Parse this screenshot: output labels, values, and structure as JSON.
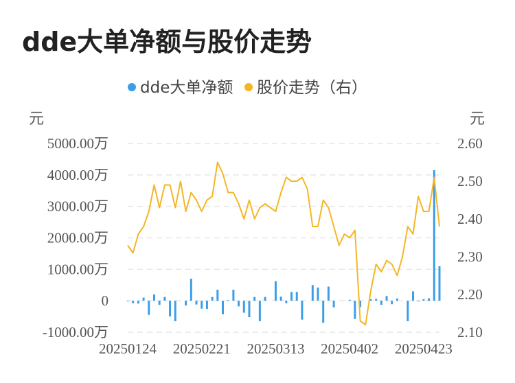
{
  "chart_data": {
    "type": "bar+line",
    "title": "dde大单净额与股价走势",
    "legend": [
      {
        "name": "dde大单净额",
        "color": "#3b9ee8"
      },
      {
        "name": "股价走势（右）",
        "color": "#f5b623"
      }
    ],
    "left_unit": "元",
    "right_unit": "元",
    "left_axis": {
      "min": -1000,
      "max": 5000,
      "ticks": [
        5000,
        4000,
        3000,
        2000,
        1000,
        0,
        -1000
      ],
      "tick_labels": [
        "5000.00万",
        "4000.00万",
        "3000.00万",
        "2000.00万",
        "1000.00万",
        "0",
        "-1000.00万"
      ]
    },
    "right_axis": {
      "min": 2.1,
      "max": 2.6,
      "ticks": [
        2.6,
        2.5,
        2.4,
        2.3,
        2.2,
        2.1
      ],
      "tick_labels": [
        "2.60",
        "2.50",
        "2.40",
        "2.30",
        "2.20",
        "2.10"
      ]
    },
    "x_labels": [
      {
        "index": 0,
        "label": "20250124"
      },
      {
        "index": 14,
        "label": "20250221"
      },
      {
        "index": 28,
        "label": "20250313"
      },
      {
        "index": 42,
        "label": "20250402"
      },
      {
        "index": 56,
        "label": "20250423"
      }
    ],
    "grid": true,
    "legend_position": "top",
    "n": 60,
    "bars": [
      -20,
      -80,
      -90,
      100,
      -450,
      200,
      -130,
      120,
      -500,
      -650,
      0,
      -150,
      700,
      -120,
      -250,
      -260,
      120,
      350,
      -430,
      20,
      350,
      -180,
      -380,
      -520,
      120,
      -650,
      120,
      0,
      620,
      130,
      -80,
      280,
      280,
      -600,
      0,
      500,
      420,
      -700,
      450,
      -210,
      0,
      0,
      30,
      -580,
      -200,
      0,
      50,
      60,
      -130,
      150,
      -110,
      70,
      0,
      -650,
      300,
      -10,
      50,
      80,
      4150,
      1100
    ],
    "line": [
      2.33,
      2.31,
      2.36,
      2.38,
      2.42,
      2.49,
      2.43,
      2.49,
      2.49,
      2.43,
      2.5,
      2.42,
      2.47,
      2.45,
      2.42,
      2.45,
      2.46,
      2.55,
      2.52,
      2.47,
      2.47,
      2.44,
      2.4,
      2.45,
      2.4,
      2.43,
      2.44,
      2.43,
      2.42,
      2.47,
      2.51,
      2.5,
      2.5,
      2.51,
      2.48,
      2.38,
      2.38,
      2.45,
      2.43,
      2.38,
      2.33,
      2.36,
      2.35,
      2.37,
      2.13,
      2.12,
      2.21,
      2.28,
      2.26,
      2.29,
      2.28,
      2.25,
      2.3,
      2.38,
      2.36,
      2.46,
      2.42,
      2.42,
      2.51,
      2.38
    ]
  }
}
